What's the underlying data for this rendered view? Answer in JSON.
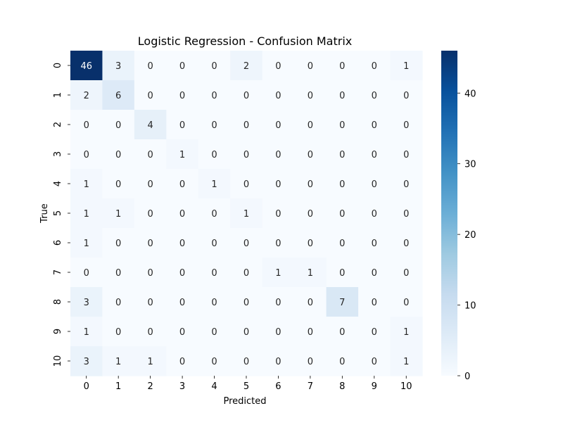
{
  "chart_data": {
    "type": "heatmap",
    "title": "Logistic Regression - Confusion Matrix",
    "xlabel": "Predicted",
    "ylabel": "True",
    "x_categories": [
      "0",
      "1",
      "2",
      "3",
      "4",
      "5",
      "6",
      "7",
      "8",
      "9",
      "10"
    ],
    "y_categories": [
      "0",
      "1",
      "2",
      "3",
      "4",
      "5",
      "6",
      "7",
      "8",
      "9",
      "10"
    ],
    "values": [
      [
        46,
        3,
        0,
        0,
        0,
        2,
        0,
        0,
        0,
        0,
        1
      ],
      [
        2,
        6,
        0,
        0,
        0,
        0,
        0,
        0,
        0,
        0,
        0
      ],
      [
        0,
        0,
        4,
        0,
        0,
        0,
        0,
        0,
        0,
        0,
        0
      ],
      [
        0,
        0,
        0,
        1,
        0,
        0,
        0,
        0,
        0,
        0,
        0
      ],
      [
        1,
        0,
        0,
        0,
        1,
        0,
        0,
        0,
        0,
        0,
        0
      ],
      [
        1,
        1,
        0,
        0,
        0,
        1,
        0,
        0,
        0,
        0,
        0
      ],
      [
        1,
        0,
        0,
        0,
        0,
        0,
        0,
        0,
        0,
        0,
        0
      ],
      [
        0,
        0,
        0,
        0,
        0,
        0,
        1,
        1,
        0,
        0,
        0
      ],
      [
        3,
        0,
        0,
        0,
        0,
        0,
        0,
        0,
        7,
        0,
        0
      ],
      [
        1,
        0,
        0,
        0,
        0,
        0,
        0,
        0,
        0,
        0,
        1
      ],
      [
        3,
        1,
        1,
        0,
        0,
        0,
        0,
        0,
        0,
        0,
        1
      ]
    ],
    "colorbar": {
      "colormap": "Blues",
      "range": [
        0,
        46
      ],
      "ticks": [
        0,
        10,
        20,
        30,
        40
      ]
    },
    "annotations_shown": true,
    "grid": false
  }
}
